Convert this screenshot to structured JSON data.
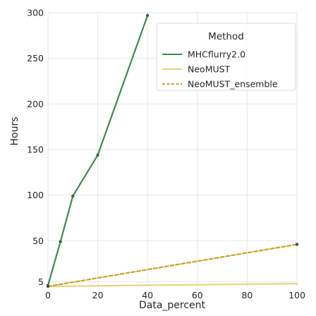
{
  "chart_data": {
    "type": "line",
    "title": "",
    "xlabel": "Data_percent",
    "ylabel": "Hours",
    "xlim": [
      0,
      100
    ],
    "ylim": [
      0,
      300
    ],
    "x_ticks": [
      0,
      20,
      40,
      60,
      80,
      100
    ],
    "y_ticks": [
      5,
      50,
      100,
      150,
      200,
      250,
      300
    ],
    "grid": true,
    "legend": {
      "title": "Method",
      "placement": "top-right"
    },
    "series": [
      {
        "name": "MHCflurry2.0",
        "color": "#3a8a55",
        "style": "solid",
        "markers": true,
        "x": [
          0,
          5,
          10,
          20,
          40
        ],
        "y": [
          1,
          49,
          99,
          144,
          297
        ]
      },
      {
        "name": "NeoMUST",
        "color": "#e8d47a",
        "style": "solid",
        "markers": false,
        "x": [
          0,
          100
        ],
        "y": [
          0,
          3
        ]
      },
      {
        "name": "NeoMUST_ensemble",
        "color": "#c9a227",
        "style": "dashed",
        "markers": true,
        "x": [
          0,
          100
        ],
        "y": [
          0,
          46
        ]
      }
    ]
  }
}
